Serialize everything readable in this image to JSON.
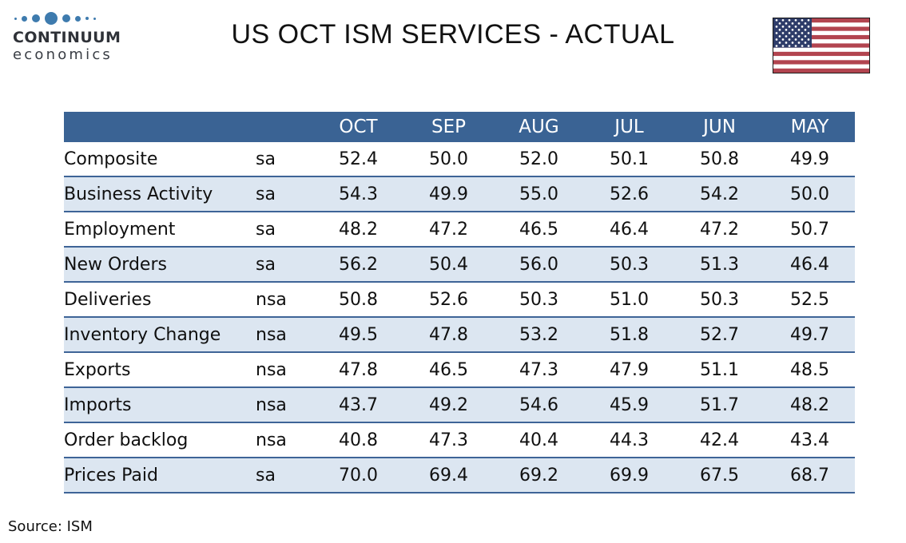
{
  "logo": {
    "line1": "CONTINUUM",
    "line2": "economics"
  },
  "title": "US OCT ISM SERVICES - ACTUAL",
  "source": "Source: ISM",
  "colors": {
    "header_blue": "#3A6394",
    "row_alt_blue": "#DCE6F1",
    "row_border_blue": "#3E6497",
    "logo_dot_blue": "#3E7BAE",
    "flag_red": "#B2444F",
    "flag_navy": "#2E3C69"
  },
  "table": {
    "months": [
      "OCT",
      "SEP",
      "AUG",
      "JUL",
      "JUN",
      "MAY"
    ],
    "rows": [
      {
        "label": "Composite",
        "adj": "sa",
        "values": [
          "52.4",
          "50.0",
          "52.0",
          "50.1",
          "50.8",
          "49.9"
        ]
      },
      {
        "label": "Business Activity",
        "adj": "sa",
        "values": [
          "54.3",
          "49.9",
          "55.0",
          "52.6",
          "54.2",
          "50.0"
        ]
      },
      {
        "label": "Employment",
        "adj": "sa",
        "values": [
          "48.2",
          "47.2",
          "46.5",
          "46.4",
          "47.2",
          "50.7"
        ]
      },
      {
        "label": "New Orders",
        "adj": "sa",
        "values": [
          "56.2",
          "50.4",
          "56.0",
          "50.3",
          "51.3",
          "46.4"
        ]
      },
      {
        "label": "Deliveries",
        "adj": "nsa",
        "values": [
          "50.8",
          "52.6",
          "50.3",
          "51.0",
          "50.3",
          "52.5"
        ]
      },
      {
        "label": "Inventory Change",
        "adj": "nsa",
        "values": [
          "49.5",
          "47.8",
          "53.2",
          "51.8",
          "52.7",
          "49.7"
        ]
      },
      {
        "label": "Exports",
        "adj": "nsa",
        "values": [
          "47.8",
          "46.5",
          "47.3",
          "47.9",
          "51.1",
          "48.5"
        ]
      },
      {
        "label": "Imports",
        "adj": "nsa",
        "values": [
          "43.7",
          "49.2",
          "54.6",
          "45.9",
          "51.7",
          "48.2"
        ]
      },
      {
        "label": "Order backlog",
        "adj": "nsa",
        "values": [
          "40.8",
          "47.3",
          "40.4",
          "44.3",
          "42.4",
          "43.4"
        ]
      },
      {
        "label": "Prices Paid",
        "adj": "sa",
        "values": [
          "70.0",
          "69.4",
          "69.2",
          "69.9",
          "67.5",
          "68.7"
        ]
      }
    ]
  },
  "chart_data": {
    "type": "table",
    "title": "US OCT ISM SERVICES - ACTUAL",
    "columns": [
      "OCT",
      "SEP",
      "AUG",
      "JUL",
      "JUN",
      "MAY"
    ],
    "rows": [
      {
        "label": "Composite",
        "adjustment": "sa",
        "values": [
          52.4,
          50.0,
          52.0,
          50.1,
          50.8,
          49.9
        ]
      },
      {
        "label": "Business Activity",
        "adjustment": "sa",
        "values": [
          54.3,
          49.9,
          55.0,
          52.6,
          54.2,
          50.0
        ]
      },
      {
        "label": "Employment",
        "adjustment": "sa",
        "values": [
          48.2,
          47.2,
          46.5,
          46.4,
          47.2,
          50.7
        ]
      },
      {
        "label": "New Orders",
        "adjustment": "sa",
        "values": [
          56.2,
          50.4,
          56.0,
          50.3,
          51.3,
          46.4
        ]
      },
      {
        "label": "Deliveries",
        "adjustment": "nsa",
        "values": [
          50.8,
          52.6,
          50.3,
          51.0,
          50.3,
          52.5
        ]
      },
      {
        "label": "Inventory Change",
        "adjustment": "nsa",
        "values": [
          49.5,
          47.8,
          53.2,
          51.8,
          52.7,
          49.7
        ]
      },
      {
        "label": "Exports",
        "adjustment": "nsa",
        "values": [
          47.8,
          46.5,
          47.3,
          47.9,
          51.1,
          48.5
        ]
      },
      {
        "label": "Imports",
        "adjustment": "nsa",
        "values": [
          43.7,
          49.2,
          54.6,
          45.9,
          51.7,
          48.2
        ]
      },
      {
        "label": "Order backlog",
        "adjustment": "nsa",
        "values": [
          40.8,
          47.3,
          40.4,
          44.3,
          42.4,
          43.4
        ]
      },
      {
        "label": "Prices Paid",
        "adjustment": "sa",
        "values": [
          70.0,
          69.4,
          69.2,
          69.9,
          67.5,
          68.7
        ]
      }
    ],
    "source": "Source: ISM"
  }
}
